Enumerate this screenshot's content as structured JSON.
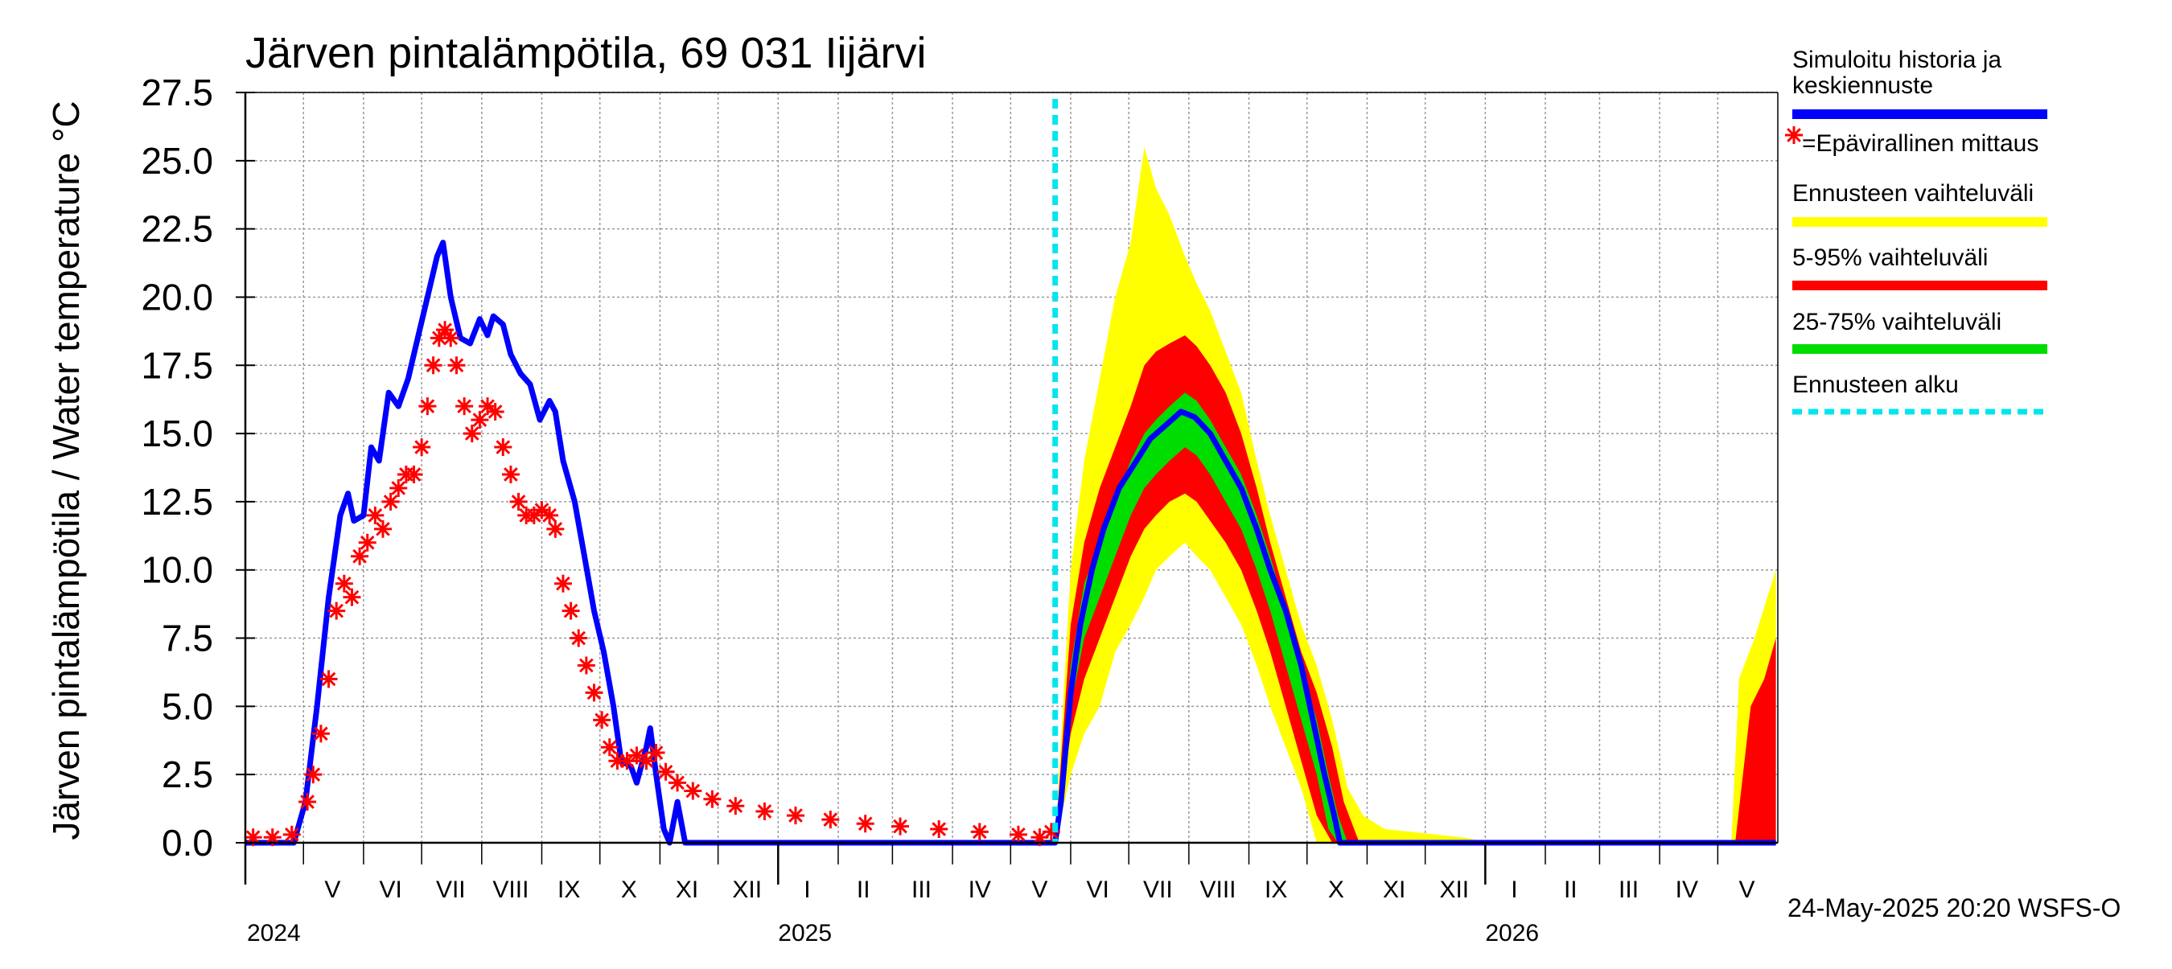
{
  "chart_data": {
    "type": "line",
    "title": "Järven pintalämpötila, 69 031 Iijärvi",
    "ylabel": "Järven pintalämpötila / Water temperature °C",
    "xlabel": "",
    "ylim": [
      0,
      27.5
    ],
    "yticks": [
      "0.0",
      "2.5",
      "5.0",
      "7.5",
      "10.0",
      "12.5",
      "15.0",
      "17.5",
      "20.0",
      "22.5",
      "25.0",
      "27.5"
    ],
    "xrange": [
      "2024-04-01",
      "2026-05-31"
    ],
    "grid": true,
    "legend_position": "right",
    "month_labels": [
      {
        "label": "V",
        "date": "2024-05-16"
      },
      {
        "label": "VI",
        "date": "2024-06-15"
      },
      {
        "label": "VII",
        "date": "2024-07-16"
      },
      {
        "label": "VIII",
        "date": "2024-08-16"
      },
      {
        "label": "IX",
        "date": "2024-09-15"
      },
      {
        "label": "X",
        "date": "2024-10-16"
      },
      {
        "label": "XI",
        "date": "2024-11-15"
      },
      {
        "label": "XII",
        "date": "2024-12-16"
      },
      {
        "label": "I",
        "date": "2025-01-16"
      },
      {
        "label": "II",
        "date": "2025-02-14"
      },
      {
        "label": "III",
        "date": "2025-03-16"
      },
      {
        "label": "IV",
        "date": "2025-04-15"
      },
      {
        "label": "V",
        "date": "2025-05-16"
      },
      {
        "label": "VI",
        "date": "2025-06-15"
      },
      {
        "label": "VII",
        "date": "2025-07-16"
      },
      {
        "label": "VIII",
        "date": "2025-08-16"
      },
      {
        "label": "IX",
        "date": "2025-09-15"
      },
      {
        "label": "X",
        "date": "2025-10-16"
      },
      {
        "label": "XI",
        "date": "2025-11-15"
      },
      {
        "label": "XII",
        "date": "2025-12-16"
      },
      {
        "label": "I",
        "date": "2026-01-16"
      },
      {
        "label": "II",
        "date": "2026-02-14"
      },
      {
        "label": "III",
        "date": "2026-03-16"
      },
      {
        "label": "IV",
        "date": "2026-04-15"
      },
      {
        "label": "V",
        "date": "2026-05-16"
      }
    ],
    "year_labels": [
      {
        "label": "2024",
        "date": "2024-04-01"
      },
      {
        "label": "2025",
        "date": "2025-01-01"
      },
      {
        "label": "2026",
        "date": "2026-01-01"
      }
    ],
    "forecast_start": "2025-05-24",
    "series": [
      {
        "name": "Simuloitu historia ja keskiennuste",
        "color": "#0000ff",
        "points": [
          [
            "2024-04-01",
            0
          ],
          [
            "2024-04-26",
            0
          ],
          [
            "2024-05-02",
            1.5
          ],
          [
            "2024-05-08",
            5
          ],
          [
            "2024-05-14",
            9
          ],
          [
            "2024-05-20",
            12
          ],
          [
            "2024-05-24",
            12.8
          ],
          [
            "2024-05-27",
            11.8
          ],
          [
            "2024-06-01",
            12
          ],
          [
            "2024-06-05",
            14.5
          ],
          [
            "2024-06-09",
            14
          ],
          [
            "2024-06-14",
            16.5
          ],
          [
            "2024-06-19",
            16
          ],
          [
            "2024-06-24",
            17
          ],
          [
            "2024-06-29",
            18.5
          ],
          [
            "2024-07-04",
            20
          ],
          [
            "2024-07-09",
            21.5
          ],
          [
            "2024-07-12",
            22
          ],
          [
            "2024-07-16",
            20
          ],
          [
            "2024-07-21",
            18.5
          ],
          [
            "2024-07-26",
            18.3
          ],
          [
            "2024-07-31",
            19.2
          ],
          [
            "2024-08-04",
            18.6
          ],
          [
            "2024-08-07",
            19.3
          ],
          [
            "2024-08-12",
            19
          ],
          [
            "2024-08-16",
            17.9
          ],
          [
            "2024-08-21",
            17.2
          ],
          [
            "2024-08-26",
            16.8
          ],
          [
            "2024-08-31",
            15.5
          ],
          [
            "2024-09-05",
            16.2
          ],
          [
            "2024-09-08",
            15.8
          ],
          [
            "2024-09-12",
            14
          ],
          [
            "2024-09-18",
            12.5
          ],
          [
            "2024-09-23",
            10.5
          ],
          [
            "2024-09-28",
            8.5
          ],
          [
            "2024-10-03",
            7
          ],
          [
            "2024-10-08",
            5
          ],
          [
            "2024-10-12",
            3
          ],
          [
            "2024-10-17",
            2.8
          ],
          [
            "2024-10-20",
            2.2
          ],
          [
            "2024-10-25",
            3.5
          ],
          [
            "2024-10-27",
            4.2
          ],
          [
            "2024-10-30",
            2.5
          ],
          [
            "2024-11-03",
            0.5
          ],
          [
            "2024-11-06",
            0
          ],
          [
            "2024-11-10",
            1.5
          ],
          [
            "2024-11-14",
            0
          ],
          [
            "2025-05-24",
            0
          ],
          [
            "2025-05-27",
            1.5
          ],
          [
            "2025-06-01",
            5.5
          ],
          [
            "2025-06-06",
            8
          ],
          [
            "2025-06-12",
            10
          ],
          [
            "2025-06-18",
            11.5
          ],
          [
            "2025-06-26",
            13
          ],
          [
            "2025-07-05",
            14
          ],
          [
            "2025-07-12",
            14.8
          ],
          [
            "2025-07-20",
            15.3
          ],
          [
            "2025-07-28",
            15.8
          ],
          [
            "2025-08-04",
            15.6
          ],
          [
            "2025-08-12",
            15
          ],
          [
            "2025-08-20",
            14
          ],
          [
            "2025-08-28",
            13
          ],
          [
            "2025-09-05",
            11.5
          ],
          [
            "2025-09-12",
            10
          ],
          [
            "2025-09-20",
            8.5
          ],
          [
            "2025-09-28",
            6.5
          ],
          [
            "2025-10-04",
            4.5
          ],
          [
            "2025-10-10",
            2.5
          ],
          [
            "2025-10-15",
            1
          ],
          [
            "2025-10-18",
            0
          ],
          [
            "2026-05-31",
            0
          ]
        ]
      },
      {
        "name": "=Epävirallinen mittaus",
        "color": "#ff0000",
        "marker": "asterisk",
        "points": [
          [
            "2024-04-05",
            0.2
          ],
          [
            "2024-04-15",
            0.2
          ],
          [
            "2024-04-25",
            0.3
          ],
          [
            "2024-05-03",
            1.5
          ],
          [
            "2024-05-06",
            2.5
          ],
          [
            "2024-05-10",
            4
          ],
          [
            "2024-05-14",
            6
          ],
          [
            "2024-05-18",
            8.5
          ],
          [
            "2024-05-22",
            9.5
          ],
          [
            "2024-05-26",
            9
          ],
          [
            "2024-05-30",
            10.5
          ],
          [
            "2024-06-03",
            11
          ],
          [
            "2024-06-07",
            12
          ],
          [
            "2024-06-11",
            11.5
          ],
          [
            "2024-06-15",
            12.5
          ],
          [
            "2024-06-19",
            13
          ],
          [
            "2024-06-23",
            13.5
          ],
          [
            "2024-06-27",
            13.5
          ],
          [
            "2024-07-01",
            14.5
          ],
          [
            "2024-07-04",
            16
          ],
          [
            "2024-07-07",
            17.5
          ],
          [
            "2024-07-10",
            18.5
          ],
          [
            "2024-07-13",
            18.8
          ],
          [
            "2024-07-16",
            18.5
          ],
          [
            "2024-07-19",
            17.5
          ],
          [
            "2024-07-23",
            16
          ],
          [
            "2024-07-27",
            15
          ],
          [
            "2024-07-31",
            15.5
          ],
          [
            "2024-08-04",
            16
          ],
          [
            "2024-08-08",
            15.8
          ],
          [
            "2024-08-12",
            14.5
          ],
          [
            "2024-08-16",
            13.5
          ],
          [
            "2024-08-20",
            12.5
          ],
          [
            "2024-08-24",
            12
          ],
          [
            "2024-08-28",
            12
          ],
          [
            "2024-09-01",
            12.2
          ],
          [
            "2024-09-05",
            12
          ],
          [
            "2024-09-08",
            11.5
          ],
          [
            "2024-09-12",
            9.5
          ],
          [
            "2024-09-16",
            8.5
          ],
          [
            "2024-09-20",
            7.5
          ],
          [
            "2024-09-24",
            6.5
          ],
          [
            "2024-09-28",
            5.5
          ],
          [
            "2024-10-02",
            4.5
          ],
          [
            "2024-10-06",
            3.5
          ],
          [
            "2024-10-10",
            3
          ],
          [
            "2024-10-15",
            3
          ],
          [
            "2024-10-20",
            3.2
          ],
          [
            "2024-10-25",
            3
          ],
          [
            "2024-10-30",
            3.3
          ],
          [
            "2024-11-04",
            2.6
          ],
          [
            "2024-11-10",
            2.2
          ],
          [
            "2024-11-18",
            1.9
          ],
          [
            "2024-11-28",
            1.6
          ],
          [
            "2024-12-10",
            1.35
          ],
          [
            "2024-12-25",
            1.15
          ],
          [
            "2025-01-10",
            1
          ],
          [
            "2025-01-28",
            0.85
          ],
          [
            "2025-02-15",
            0.7
          ],
          [
            "2025-03-05",
            0.6
          ],
          [
            "2025-03-25",
            0.5
          ],
          [
            "2025-04-15",
            0.4
          ],
          [
            "2025-05-05",
            0.3
          ],
          [
            "2025-05-16",
            0.2
          ],
          [
            "2025-05-22",
            0.4
          ]
        ]
      },
      {
        "name": "Ennusteen vaihteluväli",
        "color": "#ffff00",
        "band": [
          [
            "2025-05-24",
            0,
            0
          ],
          [
            "2025-06-01",
            2.5,
            10
          ],
          [
            "2025-06-08",
            4,
            14
          ],
          [
            "2025-06-16",
            5,
            17
          ],
          [
            "2025-06-24",
            7,
            20
          ],
          [
            "2025-07-02",
            8,
            22
          ],
          [
            "2025-07-09",
            9,
            25.5
          ],
          [
            "2025-07-15",
            10,
            24
          ],
          [
            "2025-07-22",
            10.5,
            23
          ],
          [
            "2025-07-30",
            11,
            21.5
          ],
          [
            "2025-08-05",
            10.5,
            20.5
          ],
          [
            "2025-08-12",
            10,
            19.5
          ],
          [
            "2025-08-20",
            9,
            18
          ],
          [
            "2025-08-28",
            8,
            16.5
          ],
          [
            "2025-09-05",
            6.5,
            14
          ],
          [
            "2025-09-12",
            5,
            12
          ],
          [
            "2025-09-20",
            3.5,
            10
          ],
          [
            "2025-09-28",
            2,
            8
          ],
          [
            "2025-10-06",
            0,
            6.5
          ],
          [
            "2025-10-14",
            0,
            4.5
          ],
          [
            "2025-10-22",
            0,
            2
          ],
          [
            "2025-10-30",
            0,
            1
          ],
          [
            "2025-11-10",
            0,
            0.5
          ],
          [
            "2025-12-20",
            0,
            0.2
          ],
          [
            "2026-01-05",
            0,
            0
          ],
          [
            "2026-05-08",
            0,
            0
          ],
          [
            "2026-05-12",
            0,
            6
          ],
          [
            "2026-05-20",
            0,
            7.5
          ],
          [
            "2026-05-31",
            0,
            10
          ]
        ]
      },
      {
        "name": "5-95% vaihteluväli",
        "color": "#ff0000",
        "band": [
          [
            "2025-05-24",
            0,
            0
          ],
          [
            "2025-06-01",
            4,
            8
          ],
          [
            "2025-06-08",
            6,
            11
          ],
          [
            "2025-06-16",
            7.5,
            13
          ],
          [
            "2025-06-24",
            9,
            14.5
          ],
          [
            "2025-07-02",
            10.5,
            16
          ],
          [
            "2025-07-09",
            11.5,
            17.5
          ],
          [
            "2025-07-15",
            12,
            18
          ],
          [
            "2025-07-22",
            12.5,
            18.3
          ],
          [
            "2025-07-30",
            12.8,
            18.6
          ],
          [
            "2025-08-05",
            12.5,
            18.2
          ],
          [
            "2025-08-12",
            11.8,
            17.5
          ],
          [
            "2025-08-20",
            11,
            16.5
          ],
          [
            "2025-08-28",
            10,
            15
          ],
          [
            "2025-09-05",
            8.5,
            13
          ],
          [
            "2025-09-12",
            7,
            11
          ],
          [
            "2025-09-20",
            5,
            9
          ],
          [
            "2025-09-28",
            3,
            7
          ],
          [
            "2025-10-06",
            1,
            5.5
          ],
          [
            "2025-10-14",
            0,
            3.5
          ],
          [
            "2025-10-20",
            0,
            1.5
          ],
          [
            "2025-10-28",
            0,
            0
          ],
          [
            "2026-05-10",
            0,
            0
          ],
          [
            "2026-05-18",
            0,
            5
          ],
          [
            "2026-05-25",
            0,
            6
          ],
          [
            "2026-05-31",
            0,
            7.5
          ]
        ]
      },
      {
        "name": "25-75% vaihteluväli",
        "color": "#00dd00",
        "band": [
          [
            "2025-05-24",
            0,
            0
          ],
          [
            "2025-06-01",
            5,
            6.5
          ],
          [
            "2025-06-08",
            7.5,
            9.5
          ],
          [
            "2025-06-16",
            9,
            11
          ],
          [
            "2025-06-24",
            10.5,
            12.5
          ],
          [
            "2025-07-02",
            12,
            14
          ],
          [
            "2025-07-09",
            13,
            15
          ],
          [
            "2025-07-15",
            13.5,
            15.5
          ],
          [
            "2025-07-22",
            14,
            16
          ],
          [
            "2025-07-30",
            14.5,
            16.5
          ],
          [
            "2025-08-05",
            14.2,
            16.2
          ],
          [
            "2025-08-12",
            13.5,
            15.5
          ],
          [
            "2025-08-20",
            12.5,
            14.5
          ],
          [
            "2025-08-28",
            11.5,
            13.5
          ],
          [
            "2025-09-05",
            10,
            12
          ],
          [
            "2025-09-12",
            8.5,
            10.5
          ],
          [
            "2025-09-20",
            6.5,
            8.5
          ],
          [
            "2025-09-28",
            4.5,
            6.5
          ],
          [
            "2025-10-06",
            2.5,
            4.5
          ],
          [
            "2025-10-12",
            0.5,
            2.5
          ],
          [
            "2025-10-17",
            0,
            1
          ],
          [
            "2025-10-22",
            0,
            0
          ],
          [
            "2026-05-28",
            0,
            0
          ],
          [
            "2026-05-31",
            0,
            0
          ]
        ]
      }
    ],
    "legend": [
      {
        "label": "Simuloitu historia ja keskiennuste",
        "color": "#0000ff",
        "style": "line"
      },
      {
        "label": "=Epävirallinen mittaus",
        "color": "#ff0000",
        "style": "asterisk"
      },
      {
        "label": "Ennusteen vaihteluväli",
        "color": "#ffff00",
        "style": "line"
      },
      {
        "label": "5-95% vaihteluväli",
        "color": "#ff0000",
        "style": "line"
      },
      {
        "label": "25-75% vaihteluväli",
        "color": "#00dd00",
        "style": "line"
      },
      {
        "label": "Ennusteen alku",
        "color": "#00e5ee",
        "style": "dashed"
      }
    ],
    "footer": "24-May-2025 20:20 WSFS-O"
  }
}
